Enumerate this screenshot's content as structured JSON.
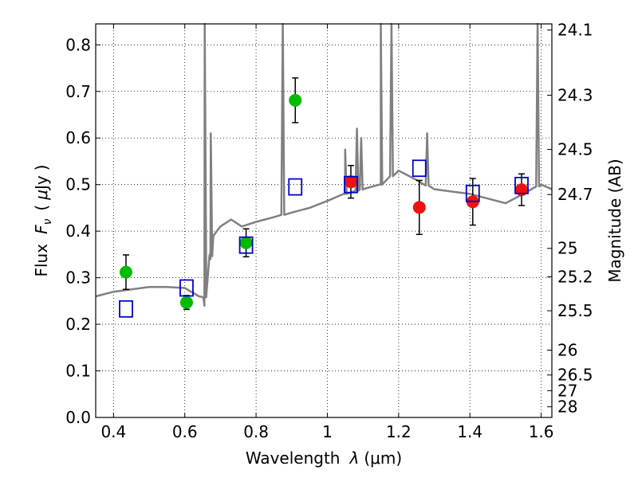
{
  "chart_data": {
    "type": "scatter",
    "xlabel": "Wavelength  λ (μm)",
    "ylabel": "Flux  F_ν  ( μJy )",
    "ylabel_parts": {
      "prefix": "Flux",
      "F": "F",
      "nu": "ν",
      "open": "(",
      "mu": "μ",
      "unit": "Jy",
      "close": ")"
    },
    "xlabel_parts": {
      "word": "Wavelength",
      "lambda": "λ",
      "unit": "(μm)"
    },
    "y2label": "Magnitude (AB)",
    "xlim": [
      0.35,
      1.63
    ],
    "ylim": [
      0.0,
      0.845
    ],
    "grid": true,
    "x_ticks": [
      "0.4",
      "0.6",
      "0.8",
      "1",
      "1.2",
      "1.4",
      "1.6"
    ],
    "y_ticks": [
      "0.0",
      "0.1",
      "0.2",
      "0.3",
      "0.4",
      "0.5",
      "0.6",
      "0.7",
      "0.8"
    ],
    "right_axis_ticks": [
      "24.1",
      "24.3",
      "24.5",
      "24.7",
      "25",
      "25.2",
      "25.5",
      "26",
      "26.5",
      "27",
      "28"
    ],
    "series": [
      {
        "marker": "circle",
        "color": "#00bb00",
        "x": [
          0.435,
          0.605,
          0.772,
          0.91
        ],
        "y": [
          0.312,
          0.247,
          0.375,
          0.681
        ],
        "yerr": [
          0.037,
          0.015,
          0.03,
          0.048
        ]
      },
      {
        "marker": "circle",
        "color": "#ee1111",
        "x": [
          1.066,
          1.258,
          1.408,
          1.545
        ],
        "y": [
          0.506,
          0.451,
          0.463,
          0.489
        ],
        "yerr": [
          0.035,
          0.058,
          0.05,
          0.034
        ]
      },
      {
        "marker": "open-square",
        "color": "#0000cc",
        "x": [
          0.435,
          0.605,
          0.772,
          0.91,
          1.066,
          1.258,
          1.408,
          1.545
        ],
        "y": [
          0.233,
          0.278,
          0.37,
          0.495,
          0.5,
          0.535,
          0.481,
          0.498
        ]
      },
      {
        "marker": "line",
        "color": "#808080",
        "x": [
          0.35,
          0.4,
          0.45,
          0.5,
          0.55,
          0.6,
          0.64,
          0.655,
          0.66,
          0.67,
          0.672,
          0.68,
          0.7,
          0.73,
          0.76,
          0.8,
          0.85,
          0.9,
          0.95,
          1.0,
          1.05,
          1.1,
          1.15,
          1.2,
          1.25,
          1.3,
          1.35,
          1.4,
          1.45,
          1.5,
          1.55,
          1.6,
          1.63
        ],
        "y": [
          0.26,
          0.27,
          0.275,
          0.28,
          0.28,
          0.278,
          0.26,
          0.24,
          0.33,
          0.35,
          0.34,
          0.39,
          0.41,
          0.425,
          0.41,
          0.42,
          0.43,
          0.44,
          0.45,
          0.465,
          0.48,
          0.49,
          0.5,
          0.53,
          0.51,
          0.49,
          0.485,
          0.48,
          0.47,
          0.46,
          0.48,
          0.5,
          0.49
        ]
      }
    ],
    "emission_lines": [
      {
        "x": 0.656,
        "peak": 0.845
      },
      {
        "x": 0.673,
        "peak": 0.61
      },
      {
        "x": 0.875,
        "peak": 0.845
      },
      {
        "x": 1.05,
        "peak": 0.575
      },
      {
        "x": 1.083,
        "peak": 0.62
      },
      {
        "x": 1.095,
        "peak": 0.6
      },
      {
        "x": 1.15,
        "peak": 0.845
      },
      {
        "x": 1.18,
        "peak": 0.845
      },
      {
        "x": 1.28,
        "peak": 0.61
      },
      {
        "x": 1.59,
        "peak": 0.845
      }
    ]
  }
}
